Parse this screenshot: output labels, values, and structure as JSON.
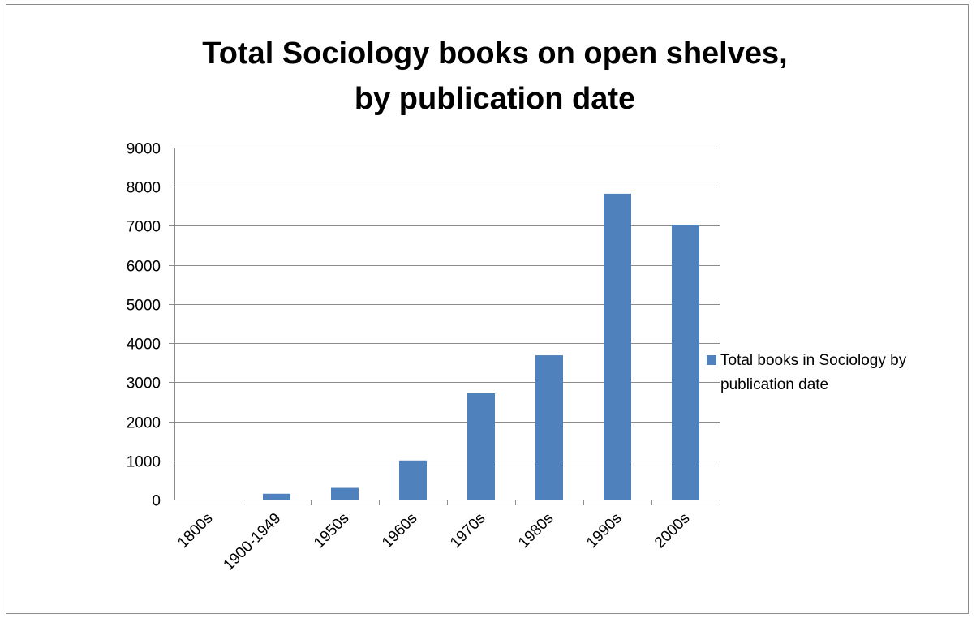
{
  "chart_data": {
    "type": "bar",
    "title_lines": [
      "Total Sociology books on open shelves,",
      "by publication date"
    ],
    "categories": [
      "1800s",
      "1900-1949",
      "1950s",
      "1960s",
      "1970s",
      "1980s",
      "1990s",
      "2000s"
    ],
    "series": [
      {
        "name": "Total books in Sociology by publication date",
        "values": [
          0,
          150,
          300,
          1000,
          2720,
          3690,
          7820,
          7030
        ],
        "color": "#4f81bd"
      }
    ],
    "ylim": [
      0,
      9000
    ],
    "y_ticks": [
      "0",
      "1000",
      "2000",
      "3000",
      "4000",
      "5000",
      "6000",
      "7000",
      "8000",
      "9000"
    ],
    "grid": true,
    "legend_position": "right",
    "xlabel": "",
    "ylabel": ""
  }
}
